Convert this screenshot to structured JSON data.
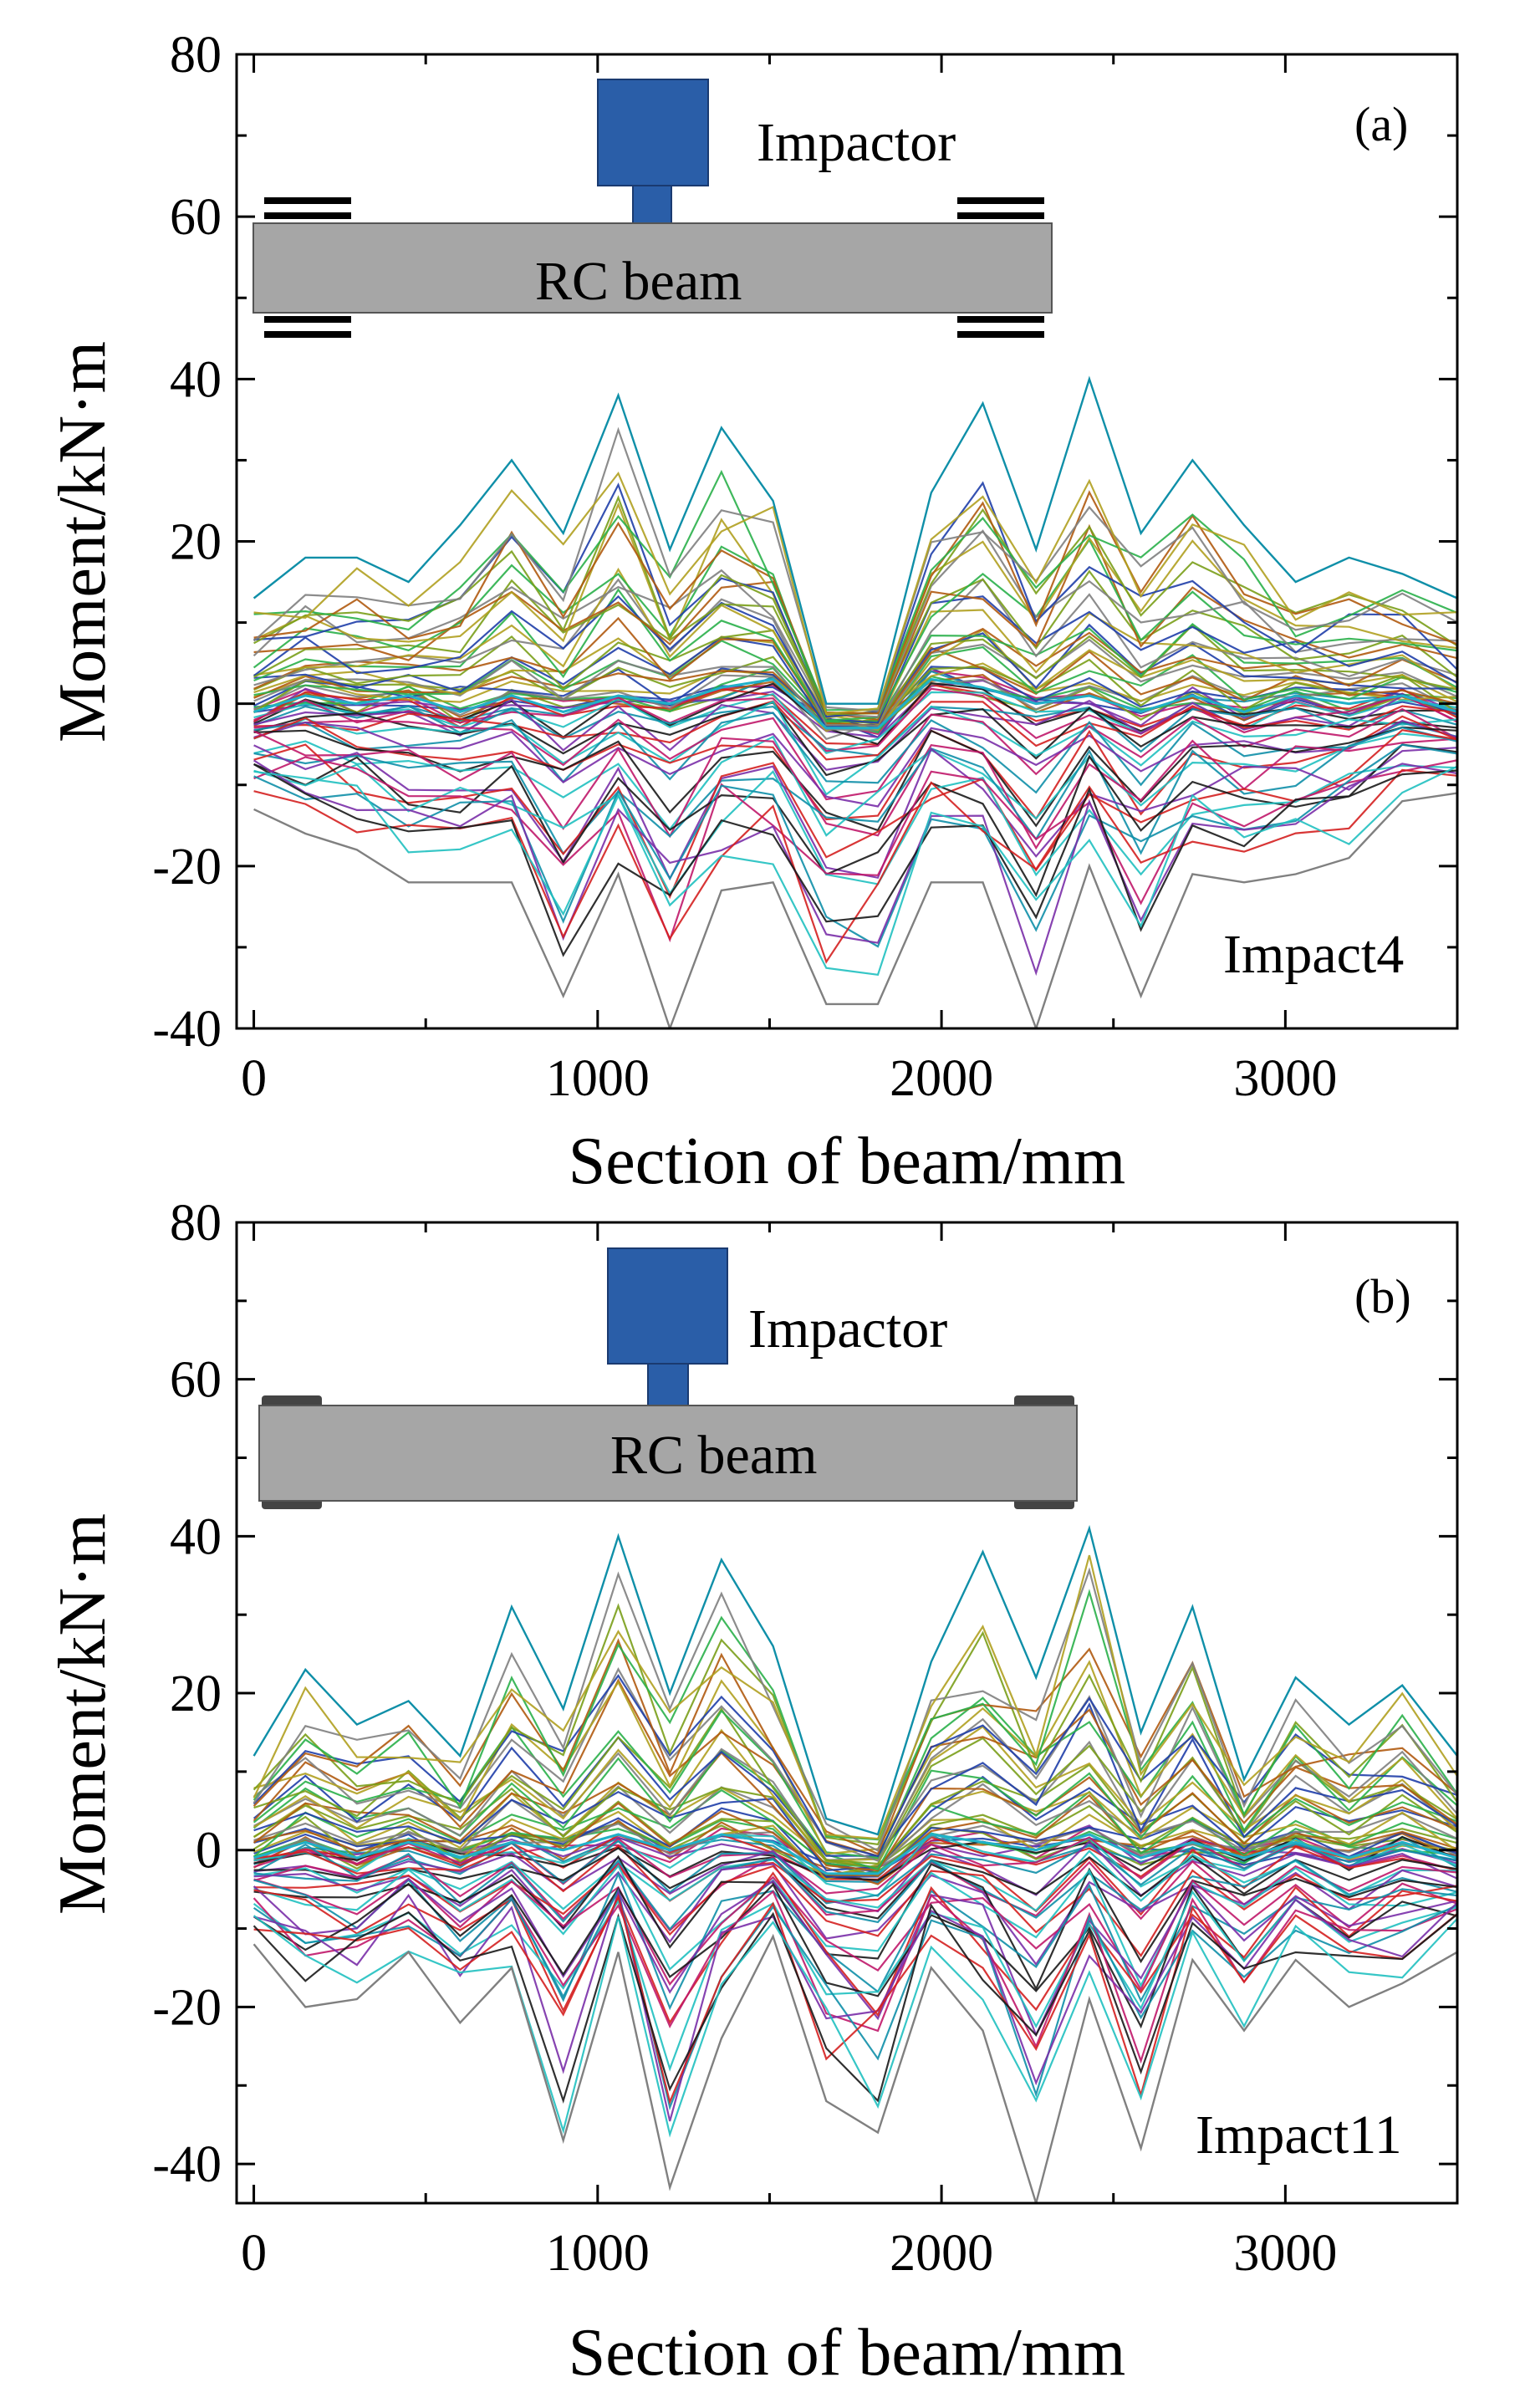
{
  "chart_data": [
    {
      "type": "line",
      "panel_label": "(a)",
      "annotation": "Impact4",
      "xlabel": "Section of beam/mm",
      "ylabel": "Moment/kN·m",
      "xlim": [
        -50,
        3500
      ],
      "ylim": [
        -40,
        80
      ],
      "xticks": [
        0,
        1000,
        2000,
        3000
      ],
      "xtick_labels": [
        "0",
        "1000",
        "2000",
        "3000"
      ],
      "yticks": [
        -40,
        -20,
        0,
        20,
        40,
        60,
        80
      ],
      "ytick_labels": [
        "-40",
        "-20",
        "0",
        "20",
        "40",
        "60",
        "80"
      ],
      "x": [
        0,
        150,
        300,
        450,
        600,
        750,
        900,
        1060,
        1210,
        1360,
        1510,
        1665,
        1815,
        1970,
        2120,
        2275,
        2430,
        2580,
        2730,
        2880,
        3030,
        3185,
        3340,
        3500
      ],
      "envelope_max": [
        13,
        18,
        18,
        15,
        22,
        30,
        21,
        38,
        19,
        34,
        25,
        0,
        0,
        26,
        37,
        19,
        40,
        21,
        30,
        22,
        15,
        18,
        16,
        13
      ],
      "envelope_min": [
        -13,
        -16,
        -18,
        -22,
        -22,
        -22,
        -36,
        -21,
        -40,
        -23,
        -22,
        -37,
        -37,
        -22,
        -22,
        -40,
        -20,
        -36,
        -21,
        -22,
        -21,
        -19,
        -12,
        -11
      ],
      "center_trace": [
        -1,
        1,
        0,
        1,
        -1,
        1,
        -1,
        1,
        0,
        2,
        3,
        -3,
        -3,
        3,
        2,
        0,
        1,
        -1,
        1,
        -1,
        1,
        0,
        1,
        -1
      ],
      "series_count_note": "many time-history curves",
      "diagram": {
        "impactor_label": "Impactor",
        "beam_label": "RC beam",
        "support": "clamped"
      }
    },
    {
      "type": "line",
      "panel_label": "(b)",
      "annotation": "Impact11",
      "xlabel": "Section of beam/mm",
      "ylabel": "Moment/kN·m",
      "xlim": [
        -50,
        3500
      ],
      "ylim": [
        -45,
        80
      ],
      "xticks": [
        0,
        1000,
        2000,
        3000
      ],
      "xtick_labels": [
        "0",
        "1000",
        "2000",
        "3000"
      ],
      "yticks": [
        -40,
        -20,
        0,
        20,
        40,
        60,
        80
      ],
      "ytick_labels": [
        "-40",
        "-20",
        "0",
        "20",
        "40",
        "60",
        "80"
      ],
      "x": [
        0,
        150,
        300,
        450,
        600,
        750,
        900,
        1060,
        1210,
        1360,
        1510,
        1665,
        1815,
        1970,
        2120,
        2275,
        2430,
        2580,
        2730,
        2880,
        3030,
        3185,
        3340,
        3500
      ],
      "envelope_max": [
        12,
        23,
        16,
        19,
        12,
        31,
        18,
        40,
        20,
        37,
        26,
        4,
        2,
        24,
        38,
        22,
        41,
        15,
        31,
        9,
        22,
        16,
        21,
        12
      ],
      "envelope_min": [
        -12,
        -20,
        -19,
        -13,
        -22,
        -15,
        -37,
        -13,
        -43,
        -24,
        -11,
        -32,
        -36,
        -15,
        -23,
        -45,
        -19,
        -38,
        -14,
        -23,
        -14,
        -20,
        -17,
        -13
      ],
      "center_trace": [
        -1,
        1,
        -1,
        1,
        -1,
        1,
        0,
        2,
        0,
        2,
        1,
        -3,
        -3,
        2,
        1,
        0,
        2,
        -1,
        1,
        -1,
        1,
        -1,
        1,
        -1
      ],
      "series_count_note": "many time-history curves",
      "diagram": {
        "impactor_label": "Impactor",
        "beam_label": "RC beam",
        "support": "simply supported"
      }
    }
  ],
  "palette": [
    "#1f3ea8",
    "#c0186a",
    "#7a9e1a",
    "#0f8fa8",
    "#b05a10",
    "#7a2fa8",
    "#2ab04a",
    "#d42020",
    "#808080",
    "#1a1a1a",
    "#b0a020",
    "#20c0c0"
  ]
}
